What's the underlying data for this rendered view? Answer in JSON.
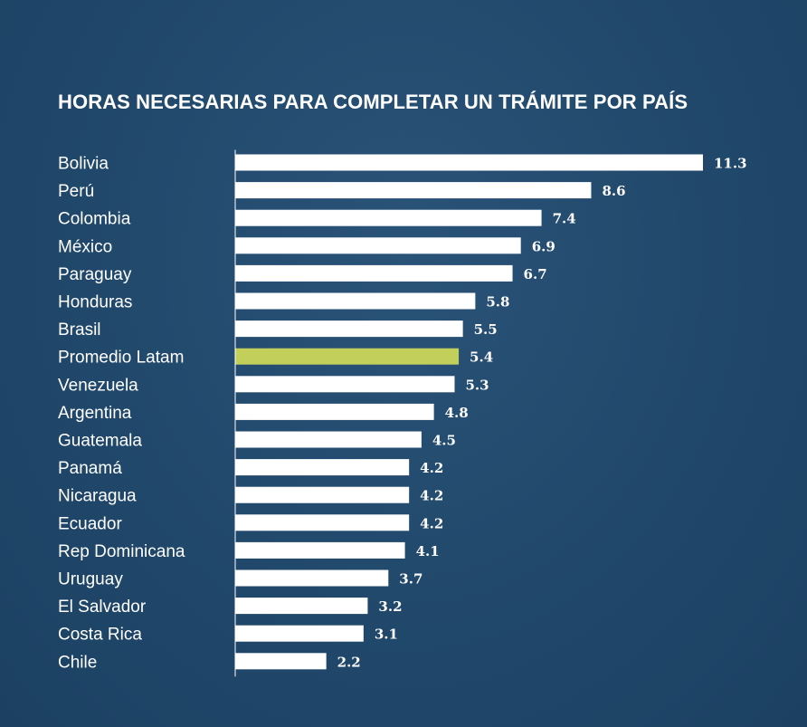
{
  "chart_data": {
    "type": "bar",
    "orientation": "horizontal",
    "title": "HORAS NECESARIAS PARA COMPLETAR UN TRÁMITE POR PAÍS",
    "categories": [
      "Bolivia",
      "Perú",
      "Colombia",
      "México",
      "Paraguay",
      "Honduras",
      "Brasil",
      "Promedio Latam",
      "Venezuela",
      "Argentina",
      "Guatemala",
      "Panamá",
      "Nicaragua",
      "Ecuador",
      "Rep Dominicana",
      "Uruguay",
      "El Salvador",
      "Costa Rica",
      "Chile"
    ],
    "values": [
      11.3,
      8.6,
      7.4,
      6.9,
      6.7,
      5.8,
      5.5,
      5.4,
      5.3,
      4.8,
      4.5,
      4.2,
      4.2,
      4.2,
      4.1,
      3.7,
      3.2,
      3.1,
      2.2
    ],
    "value_labels": [
      "11.3",
      "8.6",
      "7.4",
      "6.9",
      "6.7",
      "5.8",
      "5.5",
      "5.4",
      "5.3",
      "4.8",
      "4.5",
      "4.2",
      "4.2",
      "4.2",
      "4.1",
      "3.7",
      "3.2",
      "3.1",
      "2.2"
    ],
    "highlight_category": "Promedio Latam",
    "xlim": [
      0,
      11.3
    ],
    "grid": false,
    "legend": "none",
    "colors": {
      "background": "#224a6d",
      "bar": "#ffffff",
      "highlight_bar": "#c3cf5b",
      "highlight_label": "#c3cf5b",
      "text": "#ffffff",
      "axis": "#ffffff"
    }
  }
}
